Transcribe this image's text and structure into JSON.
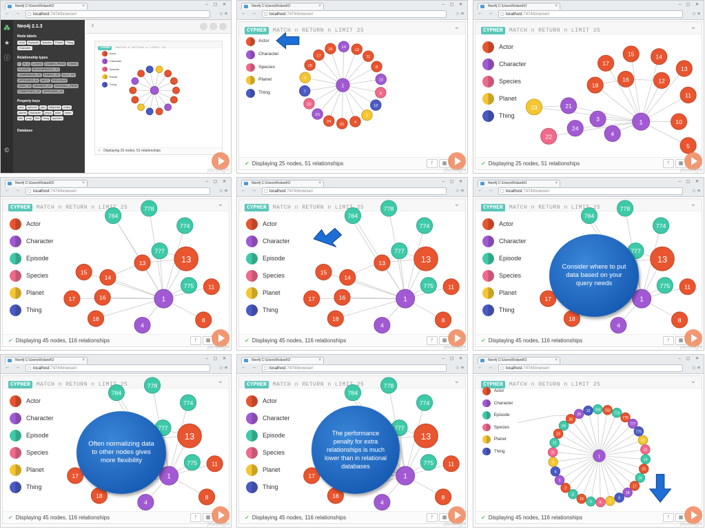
{
  "browser": {
    "tab_title": "Neo4j C:\\Users\\Roland\\O",
    "url_host": "localhost",
    "url_path": ":7474/browser/",
    "nav_glyphs": "← → C",
    "window_glyphs": "– ▢ ✕",
    "chrome_glyphs": "☆ ≡"
  },
  "neo4j_drawer": {
    "title": "Neo4j 2.1.3",
    "node_labels_heading": "Node labels",
    "node_labels": [
      "Actor",
      "Episode",
      "Species",
      "Planet",
      "Thing",
      "Character"
    ],
    "rel_types_heading": "Relationship types",
    "rel_types": [
      "*",
      "IS_A",
      "LOVED",
      "COMES_FROM",
      "OWNS",
      "PLAYED",
      "REGENERATED_TO",
      "COMPANION_OF",
      "ENEMY_OF",
      "ALLY_OF",
      "APPEARED_IN",
      "NEXT",
      "PREVIOUS",
      "USED_IN",
      "MEMBER_OF",
      "ORIGINAL_PROP",
      "COMPOSED_OF",
      "APPEARED_IN"
    ],
    "property_keys_heading": "Property keys",
    "property_keys": [
      "year",
      "episode",
      "part",
      "wikipedia",
      "notes",
      "planet",
      "character",
      "props",
      "actor",
      "name",
      "title",
      "prop",
      "title",
      "thing",
      "species"
    ],
    "database_heading": "Database",
    "editor_placeholder": "$"
  },
  "query": {
    "badge": "CYPHER",
    "text": "MATCH n RETURN n LIMIT 25"
  },
  "legend_small": [
    {
      "label": "Actor",
      "color": "#e8552f"
    },
    {
      "label": "Character",
      "color": "#a25ad4"
    },
    {
      "label": "Species",
      "color": "#f06a8b"
    },
    {
      "label": "Planet",
      "color": "#f5c631"
    },
    {
      "label": "Thing",
      "color": "#4a5bc4"
    }
  ],
  "legend_full": [
    {
      "label": "Actor",
      "color": "#e8552f"
    },
    {
      "label": "Character",
      "color": "#a25ad4"
    },
    {
      "label": "Episode",
      "color": "#3ecaa8"
    },
    {
      "label": "Species",
      "color": "#f06a8b"
    },
    {
      "label": "Planet",
      "color": "#f5c631"
    },
    {
      "label": "Thing",
      "color": "#4a5bc4"
    }
  ],
  "status": {
    "small": "Displaying 25 nodes, 51 relationships",
    "large": "Displaying 45 nodes, 116 relationships"
  },
  "callouts": {
    "frame6": "Consider where to put data based on your query needs",
    "frame7": "Often normalizing data to other nodes gives more flexibility",
    "frame8": "The performance penalty for extra relationships is much lower than in relational databases"
  },
  "brand": "pluralsight",
  "colors": {
    "actor": "#e8552f",
    "character": "#a25ad4",
    "episode": "#3ecaa8",
    "species": "#f06a8b",
    "planet": "#f5c631",
    "thing": "#4a5bc4",
    "cypher_badge": "#58c6b9",
    "callout": "#1a5fc0"
  }
}
